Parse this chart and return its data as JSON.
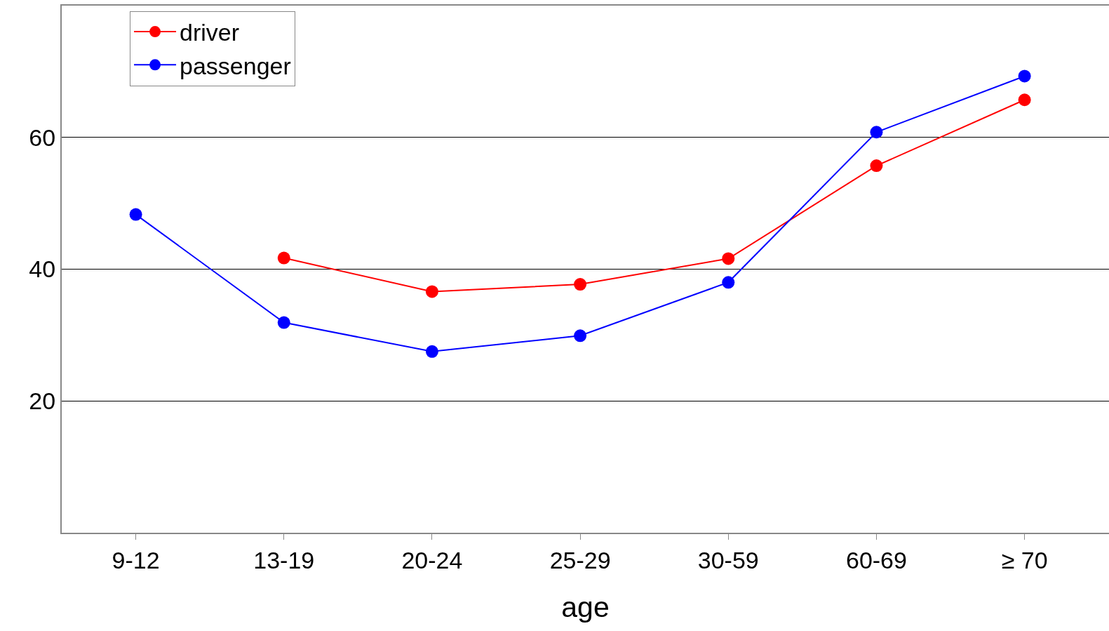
{
  "chart_data": {
    "type": "line",
    "xlabel": "age",
    "categories": [
      "9-12",
      "13-19",
      "20-24",
      "25-29",
      "30-59",
      "60-69",
      "≥ 70"
    ],
    "series": [
      {
        "name": "driver",
        "color": "#ff0000",
        "values": [
          null,
          41.7,
          36.6,
          37.7,
          41.6,
          55.7,
          65.7
        ]
      },
      {
        "name": "passenger",
        "color": "#0000ff",
        "values": [
          48.3,
          31.9,
          27.5,
          29.9,
          38.0,
          60.8,
          69.3
        ]
      }
    ],
    "ylim": [
      0,
      80
    ],
    "yticks": [
      20,
      40,
      60
    ],
    "grid": "y",
    "legend": "top left",
    "marker": "circle",
    "line_style": "solid"
  }
}
